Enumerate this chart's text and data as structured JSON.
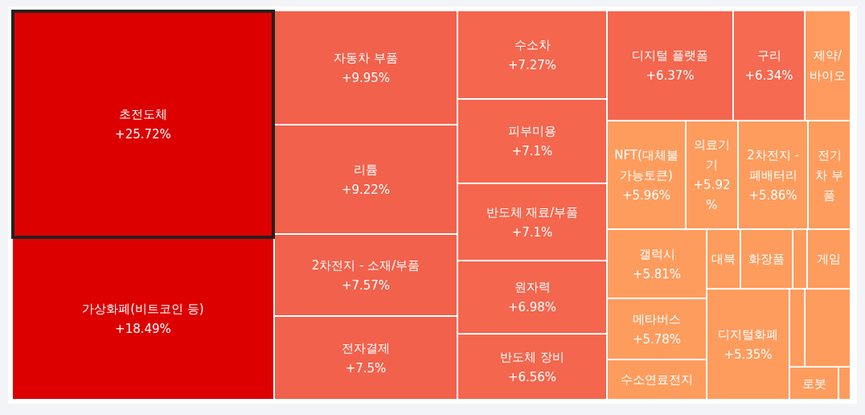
{
  "chart_data": {
    "type": "other",
    "categories": [
      "초전도체",
      "가상화폐(비트코인 등)",
      "자동차 부품",
      "리튬",
      "2차전지 - 소재/부품",
      "전자결제",
      "수소차",
      "피부미용",
      "반도체 재료/부품",
      "원자력",
      "반도체 장비",
      "디지털 플랫폼",
      "구리",
      "제약/바이오",
      "NFT(대체불가능토큰)",
      "의료기기",
      "2차전지 - 폐배터리",
      "전기차 부품",
      "갤럭시",
      "대북",
      "화장품",
      null,
      "게임",
      "메타버스",
      "수소연료전지",
      "디지털화폐",
      null,
      null,
      "로봇",
      null
    ],
    "values": [
      25.72,
      18.49,
      9.95,
      9.22,
      7.57,
      7.5,
      7.27,
      7.1,
      7.1,
      6.98,
      6.56,
      6.37,
      6.34,
      null,
      5.96,
      5.92,
      5.86,
      null,
      5.81,
      null,
      null,
      null,
      null,
      5.78,
      null,
      5.35,
      null,
      null,
      null,
      null
    ],
    "value_labels": [
      "+25.72%",
      "+18.49%",
      "+9.95%",
      "+9.22%",
      "+7.57%",
      "+7.5%",
      "+7.27%",
      "+7.1%",
      "+7.1%",
      "+6.98%",
      "+6.56%",
      "+6.37%",
      "+6.34%",
      null,
      "+5.96%",
      "+5.92%",
      "+5.86%",
      null,
      "+5.81%",
      null,
      null,
      null,
      null,
      "+5.78%",
      null,
      "+5.35%",
      null,
      null,
      null,
      null
    ],
    "colors": [
      "#dd0000",
      "#dd0000",
      "#f2614b",
      "#f2614b",
      "#f2614b",
      "#f2614b",
      "#f4664e",
      "#f4664e",
      "#f4664e",
      "#f4664e",
      "#f4664e",
      "#f4664e",
      "#f56a50",
      "#fe9a5e",
      "#fe9c5e",
      "#fe9c5e",
      "#fe9c5e",
      "#fe9c5e",
      "#fe9c5e",
      "#fe9c5e",
      "#fe9c5e",
      "#fe9c5e",
      "#fe9c5e",
      "#fe9c5e",
      "#fe9c5e",
      "#fe9c5e",
      "#fe9c5e",
      "#fe9c5e",
      "#fe9c5e",
      "#fe9c5e"
    ]
  }
}
